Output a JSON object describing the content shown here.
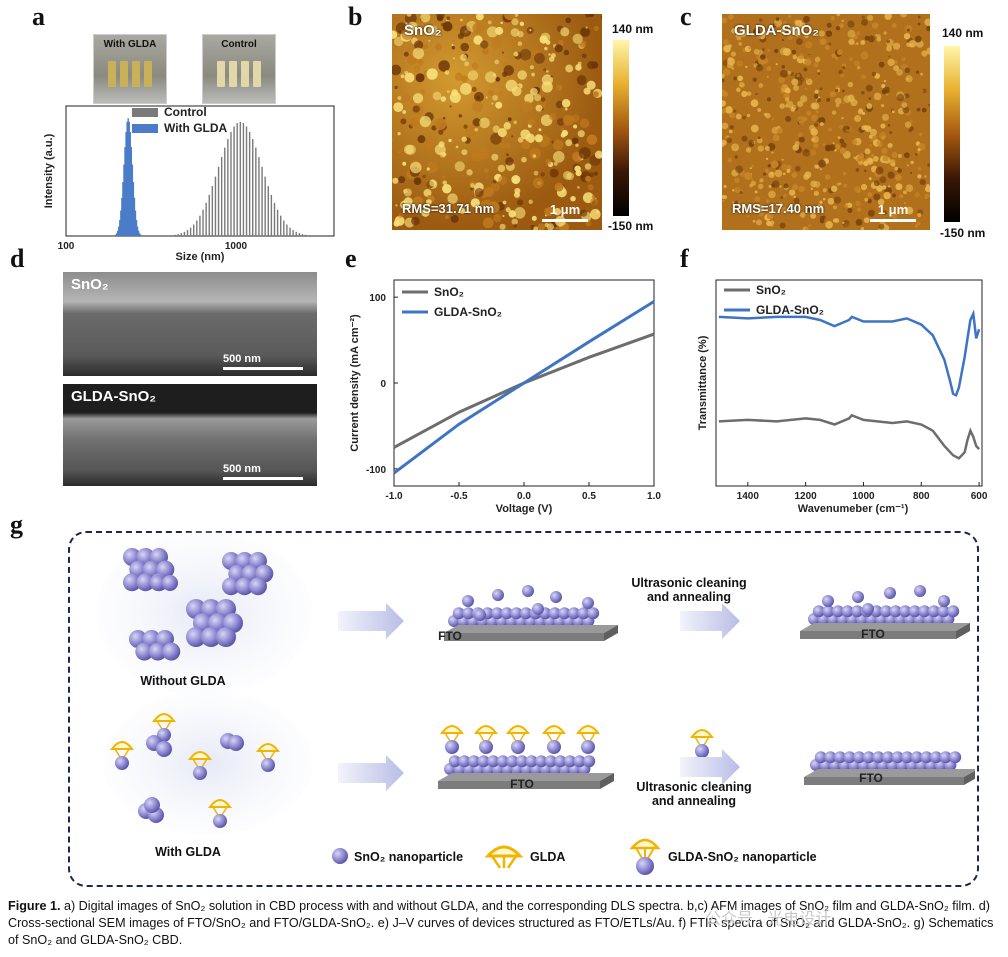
{
  "panels": {
    "a": "a",
    "b": "b",
    "c": "c",
    "d": "d",
    "e": "e",
    "f": "f",
    "g": "g"
  },
  "panel_a": {
    "photo_labels": [
      "With GLDA",
      "Control"
    ],
    "legend": [
      "Control",
      "With GLDA"
    ],
    "ylabel": "Intensity (a.u.)",
    "xlabel": "Size (nm)",
    "xticks": [
      "100",
      "1000"
    ],
    "colors": {
      "control": "#7a7a7a",
      "with_glda": "#4a7cc9"
    }
  },
  "panel_b": {
    "title": "SnO₂",
    "rms": "RMS=31.71 nm",
    "scale": "1 μm",
    "cbar_top": "140 nm",
    "cbar_bottom": "-150 nm"
  },
  "panel_c": {
    "title": "GLDA-SnO₂",
    "rms": "RMS=17.40 nm",
    "scale": "1 μm",
    "cbar_top": "140 nm",
    "cbar_bottom": "-150 nm"
  },
  "panel_d": {
    "top_title": "SnO₂",
    "bottom_title": "GLDA-SnO₂",
    "scale": "500 nm"
  },
  "chart_data": [
    {
      "panel": "a",
      "type": "bar",
      "xlabel": "Size (nm)",
      "ylabel": "Intensity (a.u.)",
      "xscale": "log",
      "xlim": [
        100,
        4000
      ],
      "series": [
        {
          "name": "Control",
          "center": 1100,
          "sigma": 0.13,
          "peak": 0.92
        },
        {
          "name": "With GLDA",
          "center": 235,
          "sigma": 0.025,
          "peak": 0.95
        }
      ]
    },
    {
      "panel": "e",
      "type": "line",
      "xlabel": "Voltage (V)",
      "ylabel": "Current density (mA cm⁻²)",
      "xlim": [
        -1.0,
        1.0
      ],
      "ylim": [
        -120,
        120
      ],
      "xticks": [
        "-1.0",
        "-0.5",
        "0.0",
        "0.5",
        "1.0"
      ],
      "yticks": [
        "100",
        "0",
        "-100"
      ],
      "series": [
        {
          "name": "SnO₂",
          "x": [
            -1.0,
            -0.5,
            0.0,
            0.5,
            1.0
          ],
          "y": [
            -75,
            -34,
            0,
            30,
            57
          ],
          "color": "#6d6d6d"
        },
        {
          "name": "GLDA-SnO₂",
          "x": [
            -1.0,
            -0.5,
            0.0,
            0.5,
            1.0
          ],
          "y": [
            -105,
            -48,
            0,
            48,
            95
          ],
          "color": "#3e74c4"
        }
      ]
    },
    {
      "panel": "f",
      "type": "line",
      "xlabel": "Wavenumeber (cm⁻¹)",
      "ylabel": "Transmittance (%)",
      "xlim": [
        1500,
        600
      ],
      "xreverse": true,
      "xticks": [
        "1400",
        "1200",
        "1000",
        "800",
        "600"
      ],
      "series": [
        {
          "name": "SnO₂",
          "color": "#6d6d6d",
          "x": [
            1500,
            1400,
            1300,
            1200,
            1150,
            1100,
            1050,
            1040,
            1000,
            900,
            850,
            800,
            760,
            720,
            690,
            670,
            650,
            640,
            630,
            620,
            610,
            600
          ],
          "y": [
            36,
            36.5,
            36,
            37,
            36.5,
            35,
            37,
            38,
            36.5,
            35.5,
            36,
            35,
            33,
            28,
            25,
            24,
            26,
            30,
            33,
            31,
            28,
            27
          ]
        },
        {
          "name": "GLDA-SnO₂",
          "color": "#3e74c4",
          "x": [
            1500,
            1400,
            1300,
            1200,
            1150,
            1100,
            1050,
            1040,
            1000,
            900,
            850,
            800,
            760,
            720,
            700,
            690,
            680,
            670,
            660,
            650,
            640,
            630,
            620,
            610,
            600
          ],
          "y": [
            70,
            69.5,
            70,
            70,
            69,
            67,
            69,
            70,
            68.5,
            68.5,
            69.5,
            67.5,
            64,
            56,
            49,
            45,
            44.5,
            47,
            52,
            57,
            63,
            69,
            71,
            63,
            66
          ]
        }
      ]
    }
  ],
  "panel_g": {
    "fto": "FTO",
    "step": "Ultrasonic cleaning and annealing",
    "without": "Without GLDA",
    "with": "With GLDA",
    "legend": [
      "SnO₂ nanoparticle",
      "GLDA",
      "GLDA-SnO₂ nanoparticle"
    ]
  },
  "caption": {
    "label": "Figure 1.",
    "text": " a) Digital images of SnO₂ solution in CBD process with and without GLDA, and the corresponding DLS spectra. b,c) AFM images of SnO₂ film and GLDA-SnO₂ film. d) Cross-sectional SEM images of FTO/SnO₂ and FTO/GLDA-SnO₂. e) J–V curves of devices structured as FTO/ETLs/Au. f) FTIR spectra of SnO₂ and GLDA-SnO₂. g) Schematics of SnO₂ and GLDA-SnO₂ CBD."
  },
  "watermark": "公众号 · 光电设计"
}
